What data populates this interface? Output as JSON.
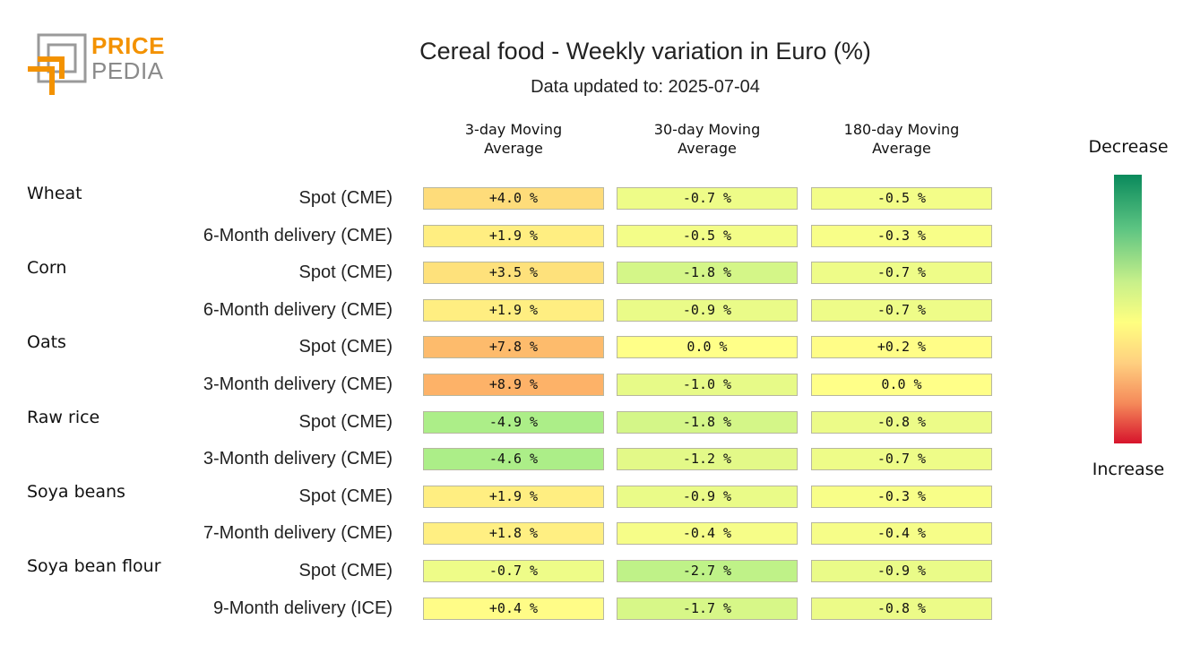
{
  "logo": {
    "line1": "PRICE",
    "line2": "PEDIA"
  },
  "chart_data": {
    "type": "heatmap",
    "title": "Cereal food - Weekly variation in Euro (%)",
    "subtitle": "Data updated to: 2025-07-04",
    "columns": [
      "3-day Moving Average",
      "30-day Moving Average",
      "180-day Moving Average"
    ],
    "legend": {
      "top": "Decrease",
      "bottom": "Increase"
    },
    "groups": [
      {
        "name": "Wheat",
        "rows": [
          {
            "label": "Spot (CME)",
            "values": [
              "+4.0 %",
              "-0.7 %",
              "-0.5 %"
            ],
            "num": [
              4.0,
              -0.7,
              -0.5
            ]
          },
          {
            "label": "6-Month delivery (CME)",
            "values": [
              "+1.9 %",
              "-0.5 %",
              "-0.3 %"
            ],
            "num": [
              1.9,
              -0.5,
              -0.3
            ]
          }
        ]
      },
      {
        "name": "Corn",
        "rows": [
          {
            "label": "Spot (CME)",
            "values": [
              "+3.5 %",
              "-1.8 %",
              "-0.7 %"
            ],
            "num": [
              3.5,
              -1.8,
              -0.7
            ]
          },
          {
            "label": "6-Month delivery (CME)",
            "values": [
              "+1.9 %",
              "-0.9 %",
              "-0.7 %"
            ],
            "num": [
              1.9,
              -0.9,
              -0.7
            ]
          }
        ]
      },
      {
        "name": "Oats",
        "rows": [
          {
            "label": "Spot (CME)",
            "values": [
              "+7.8 %",
              "0.0 %",
              "+0.2 %"
            ],
            "num": [
              7.8,
              0.0,
              0.2
            ]
          },
          {
            "label": "3-Month delivery (CME)",
            "values": [
              "+8.9 %",
              "-1.0 %",
              "0.0 %"
            ],
            "num": [
              8.9,
              -1.0,
              0.0
            ]
          }
        ]
      },
      {
        "name": "Raw rice",
        "rows": [
          {
            "label": "Spot (CME)",
            "values": [
              "-4.9 %",
              "-1.8 %",
              "-0.8 %"
            ],
            "num": [
              -4.9,
              -1.8,
              -0.8
            ]
          },
          {
            "label": "3-Month delivery (CME)",
            "values": [
              "-4.6 %",
              "-1.2 %",
              "-0.7 %"
            ],
            "num": [
              -4.6,
              -1.2,
              -0.7
            ]
          }
        ]
      },
      {
        "name": "Soya beans",
        "rows": [
          {
            "label": "Spot (CME)",
            "values": [
              "+1.9 %",
              "-0.9 %",
              "-0.3 %"
            ],
            "num": [
              1.9,
              -0.9,
              -0.3
            ]
          },
          {
            "label": "7-Month delivery (CME)",
            "values": [
              "+1.8 %",
              "-0.4 %",
              "-0.4 %"
            ],
            "num": [
              1.8,
              -0.4,
              -0.4
            ]
          }
        ]
      },
      {
        "name": "Soya bean flour",
        "rows": [
          {
            "label": "Spot (CME)",
            "values": [
              "-0.7 %",
              "-2.7 %",
              "-0.9 %"
            ],
            "num": [
              -0.7,
              -2.7,
              -0.9
            ]
          },
          {
            "label": "9-Month delivery (ICE)",
            "values": [
              "+0.4 %",
              "-1.7 %",
              "-0.8 %"
            ],
            "num": [
              0.4,
              -1.7,
              -0.8
            ]
          }
        ]
      }
    ]
  }
}
